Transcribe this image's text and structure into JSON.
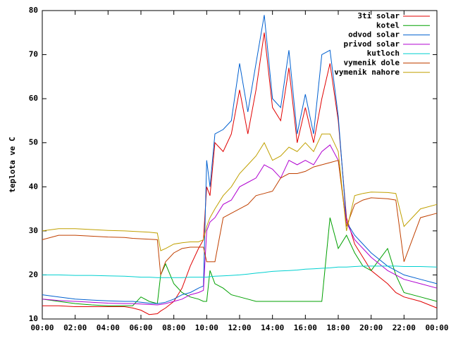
{
  "chart_data": {
    "type": "line",
    "ylabel": "teplota ve C",
    "x": [
      0,
      1,
      2,
      3,
      4,
      5,
      5.5,
      6,
      6.5,
      7,
      7.2,
      7.5,
      8,
      8.5,
      9,
      9.5,
      9.8,
      10,
      10.2,
      10.5,
      11,
      11.5,
      12,
      12.5,
      13,
      13.5,
      14,
      14.5,
      15,
      15.5,
      16,
      16.5,
      17,
      17.5,
      18,
      18.5,
      19,
      19.5,
      20,
      21,
      21.5,
      22,
      23,
      24
    ],
    "xlim": [
      0,
      24
    ],
    "xticks": [
      {
        "value": 0,
        "label": "00:00"
      },
      {
        "value": 2,
        "label": "02:00"
      },
      {
        "value": 4,
        "label": "04:00"
      },
      {
        "value": 6,
        "label": "06:00"
      },
      {
        "value": 8,
        "label": "08:00"
      },
      {
        "value": 10,
        "label": "10:00"
      },
      {
        "value": 12,
        "label": "12:00"
      },
      {
        "value": 14,
        "label": "14:00"
      },
      {
        "value": 16,
        "label": "16:00"
      },
      {
        "value": 18,
        "label": "18:00"
      },
      {
        "value": 20,
        "label": "20:00"
      },
      {
        "value": 22,
        "label": "22:00"
      },
      {
        "value": 24,
        "label": "00:00"
      }
    ],
    "ylim": [
      10,
      80
    ],
    "yticks": [
      10,
      20,
      30,
      40,
      50,
      60,
      70,
      80
    ],
    "legend": "top-right",
    "series": [
      {
        "name": "3ti solar",
        "color": "#e00000",
        "values": [
          13,
          13,
          12.8,
          12.8,
          12.8,
          12.8,
          12.5,
          12,
          11,
          11.2,
          11.8,
          12.5,
          14,
          17,
          22,
          26,
          28,
          40,
          38,
          50,
          48,
          52,
          62,
          52,
          62,
          75,
          58,
          55,
          67,
          50,
          58,
          50,
          60,
          68,
          55,
          33,
          27,
          24,
          21,
          18,
          16,
          15,
          14,
          12.5
        ]
      },
      {
        "name": "kotel",
        "color": "#00a000",
        "values": [
          14.5,
          14,
          13.5,
          13.2,
          13,
          13,
          13,
          15,
          14,
          13.5,
          20,
          22.5,
          18,
          16,
          15,
          14.5,
          14,
          14,
          21,
          18,
          17,
          15.5,
          15,
          14.5,
          14,
          14,
          14,
          14,
          14,
          14,
          14,
          14,
          14,
          33,
          26,
          29,
          25,
          22,
          21,
          26,
          20,
          16,
          15,
          14
        ]
      },
      {
        "name": "odvod solar",
        "color": "#0060d0",
        "values": [
          15.5,
          15,
          14.5,
          14.3,
          14.1,
          14,
          14,
          13.8,
          13.6,
          13.5,
          13.6,
          13.8,
          14.5,
          15.5,
          16,
          17,
          17.5,
          46,
          40,
          52,
          53,
          55,
          68,
          57,
          68,
          79,
          60,
          58,
          71,
          52,
          61,
          52,
          70,
          71,
          56,
          32,
          29,
          27,
          25,
          22,
          21,
          20,
          19,
          18
        ]
      },
      {
        "name": "privod solar",
        "color": "#b000d0",
        "values": [
          14.5,
          14.2,
          14,
          13.8,
          13.6,
          13.5,
          13.5,
          13.4,
          13.3,
          13.2,
          13.3,
          13.5,
          14,
          14.5,
          15.5,
          16,
          16.5,
          30,
          32,
          33,
          36,
          37,
          40,
          41,
          42,
          45,
          44,
          42,
          46,
          45,
          46,
          45,
          48,
          49.5,
          46,
          32,
          28,
          26,
          24,
          21,
          20,
          19,
          18,
          17
        ]
      },
      {
        "name": "kutloch",
        "color": "#00d0d0",
        "values": [
          20,
          20,
          19.9,
          19.9,
          19.8,
          19.7,
          19.6,
          19.5,
          19.5,
          19.4,
          19.4,
          19.4,
          19.4,
          19.4,
          19.5,
          19.5,
          19.5,
          19.5,
          19.6,
          19.7,
          19.8,
          19.9,
          20,
          20.2,
          20.4,
          20.6,
          20.8,
          20.9,
          21,
          21.1,
          21.3,
          21.4,
          21.5,
          21.6,
          21.8,
          21.8,
          21.9,
          22,
          22,
          22,
          22,
          21.9,
          21.9,
          21.8
        ]
      },
      {
        "name": "vymenik dole",
        "color": "#c04000",
        "values": [
          28,
          29,
          29,
          28.8,
          28.6,
          28.5,
          28.3,
          28.2,
          28.1,
          28,
          20,
          23,
          25,
          26,
          26.3,
          26.3,
          26.3,
          23,
          23,
          23,
          33,
          34,
          35,
          36,
          38,
          38.5,
          39,
          42,
          43,
          43,
          43.5,
          44.5,
          45,
          45.5,
          46,
          31,
          36,
          37,
          37.5,
          37.3,
          37,
          23,
          33,
          34
        ]
      },
      {
        "name": "vymenik nahore",
        "color": "#c0a000",
        "values": [
          30,
          30.5,
          30.5,
          30.3,
          30.1,
          30,
          29.9,
          29.8,
          29.7,
          29.5,
          25.5,
          26,
          27,
          27.3,
          27.5,
          27.5,
          28,
          31,
          33,
          35,
          38,
          40,
          43,
          45,
          47,
          50,
          46,
          47,
          49,
          48,
          50,
          48,
          52,
          52,
          48,
          30,
          38,
          38.5,
          38.8,
          38.7,
          38.5,
          31,
          35,
          36
        ]
      }
    ]
  }
}
